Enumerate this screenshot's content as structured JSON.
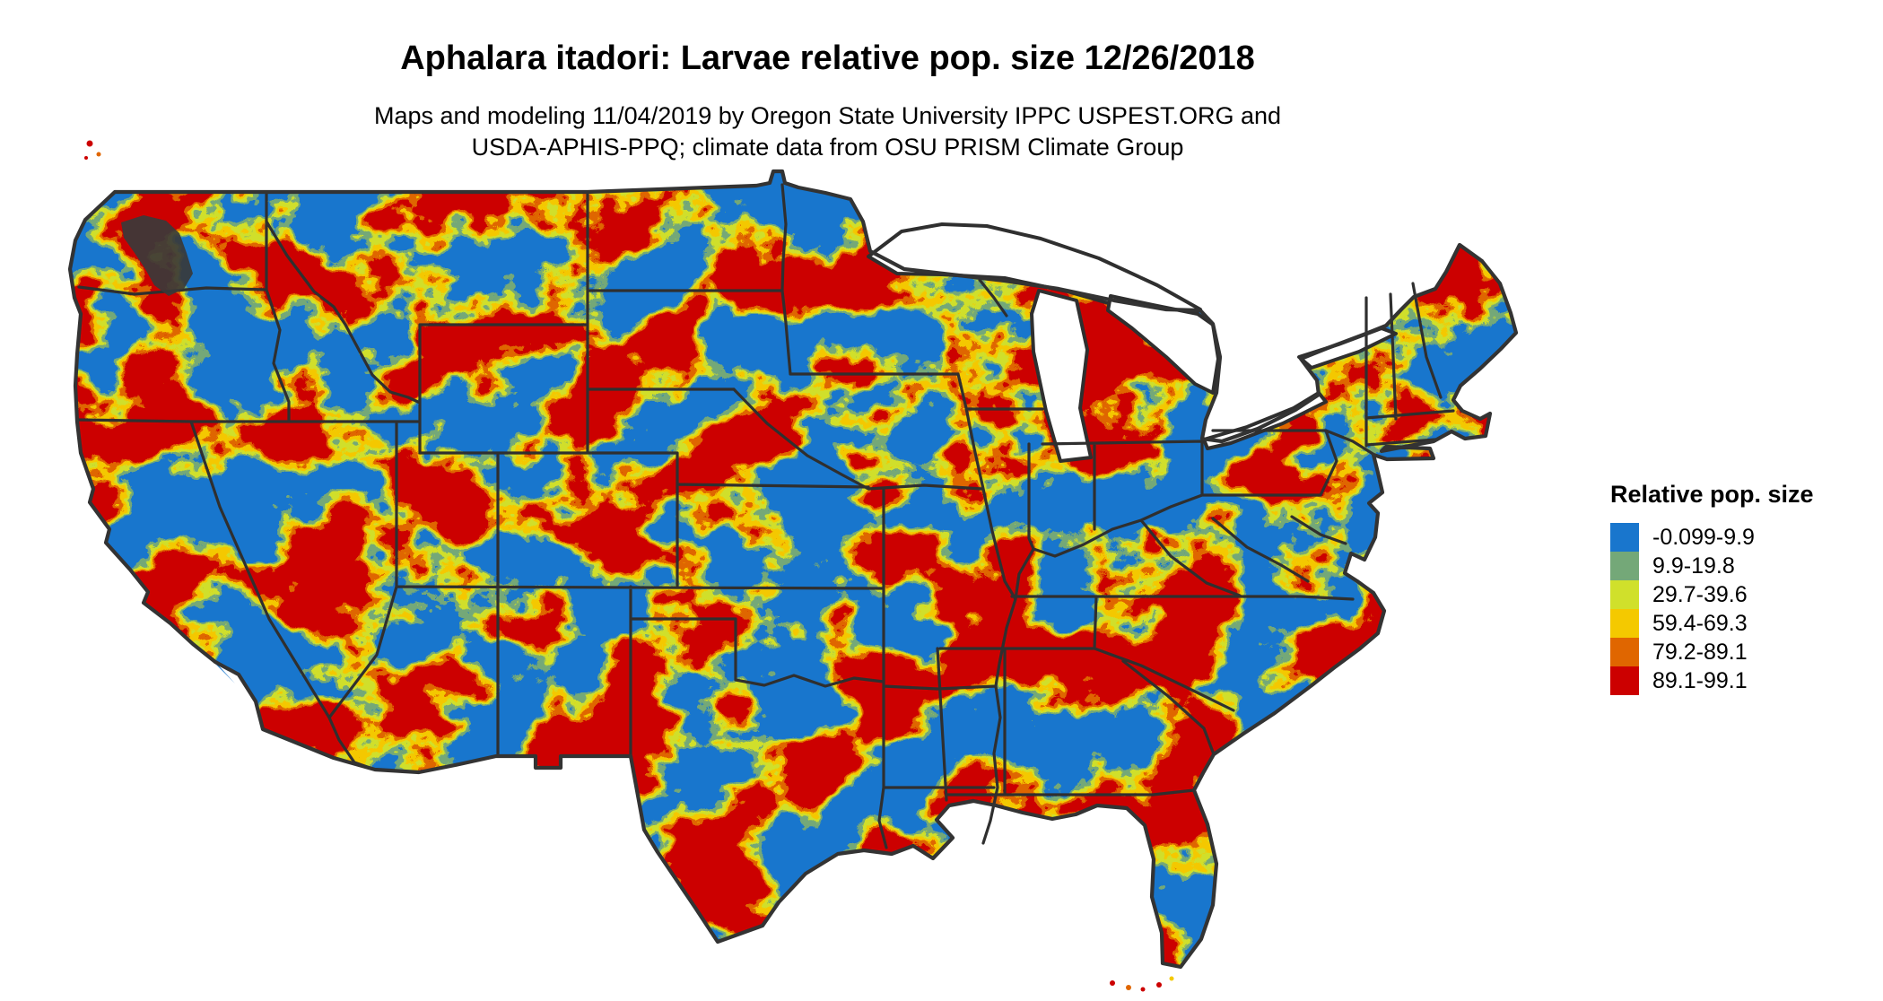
{
  "header": {
    "title": "Aphalara itadori: Larvae relative pop. size 12/26/2018",
    "subtitle_line1": "Maps and modeling 11/04/2019 by Oregon State University IPPC USPEST.ORG and",
    "subtitle_line2": "USDA-APHIS-PPQ; climate data from OSU PRISM Climate Group"
  },
  "legend": {
    "title": "Relative pop. size",
    "entries": [
      {
        "label": "-0.099-9.9",
        "color": "#1976CD"
      },
      {
        "label": "9.9-19.8",
        "color": "#74A878"
      },
      {
        "label": "29.7-39.6",
        "color": "#D0E02B"
      },
      {
        "label": "59.4-69.3",
        "color": "#F4C900"
      },
      {
        "label": "79.2-89.1",
        "color": "#E06600"
      },
      {
        "label": "89.1-99.1",
        "color": "#CC0000"
      }
    ]
  },
  "map": {
    "border_color": "#2F2F2F",
    "outline_color": "#333333",
    "water_color": "#FFFFFF",
    "background_color": "#FFFFFF"
  },
  "chart_data": {
    "type": "heatmap",
    "title": "Aphalara itadori: Larvae relative pop. size 12/26/2018",
    "legend_title": "Relative pop. size",
    "bins": [
      "-0.099-9.9",
      "9.9-19.8",
      "29.7-39.6",
      "59.4-69.3",
      "79.2-89.1",
      "89.1-99.1"
    ],
    "bin_colors": [
      "#1976CD",
      "#74A878",
      "#D0E02B",
      "#F4C900",
      "#E06600",
      "#CC0000"
    ],
    "legend_position": "right"
  }
}
